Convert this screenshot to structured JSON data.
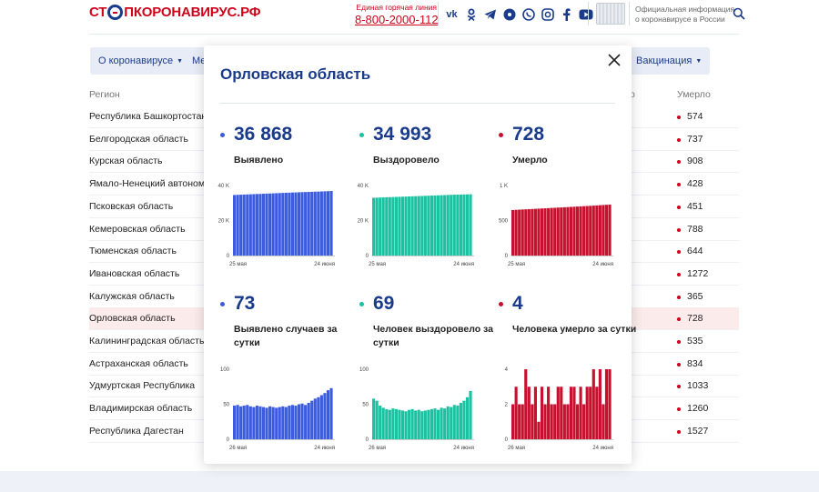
{
  "header": {
    "logo_pre": "СТ",
    "logo_post": "ПКОРОНАВИРУС.РФ",
    "hotline_label": "Единая горячая линия",
    "hotline_phone": "8-800-2000-112",
    "social_icons": [
      "vk-icon",
      "ok-icon",
      "telegram-icon",
      "viber-alt-icon",
      "viber-icon",
      "instagram-icon",
      "facebook-icon",
      "youtube-icon"
    ],
    "official_line1": "Официальная информация",
    "official_line2": "о коронавирусе в России"
  },
  "nav": {
    "pill1": "О коронавирусе",
    "pill2": "Ме",
    "pill3": "Вакцинация"
  },
  "table": {
    "col_region": "Регион",
    "col_partial": "о",
    "col_deaths": "Умерло",
    "rows": [
      {
        "region": "Республика Башкортостан",
        "deaths": "574"
      },
      {
        "region": "Белгородская область",
        "deaths": "737"
      },
      {
        "region": "Курская область",
        "deaths": "908"
      },
      {
        "region": "Ямало-Ненецкий автономн",
        "deaths": "428"
      },
      {
        "region": "Псковская область",
        "deaths": "451"
      },
      {
        "region": "Кемеровская область",
        "deaths": "788"
      },
      {
        "region": "Тюменская область",
        "deaths": "644"
      },
      {
        "region": "Ивановская область",
        "deaths": "1272"
      },
      {
        "region": "Калужская область",
        "deaths": "365"
      },
      {
        "region": "Орловская область",
        "deaths": "728"
      },
      {
        "region": "Калининградская область",
        "deaths": "535"
      },
      {
        "region": "Астраханская область",
        "deaths": "834"
      },
      {
        "region": "Удмуртская Республика",
        "deaths": "1033"
      },
      {
        "region": "Владимирская область",
        "deaths": "1260"
      },
      {
        "region": "Республика Дагестан",
        "deaths": "1527"
      }
    ]
  },
  "modal": {
    "title": "Орловская область",
    "stats": [
      {
        "value": "36 868",
        "label": "Выявлено",
        "color": "#3c5ce0"
      },
      {
        "value": "34 993",
        "label": "Выздоровело",
        "color": "#1bc2a2"
      },
      {
        "value": "728",
        "label": "Умерло",
        "color": "#c8102e"
      },
      {
        "value": "73",
        "label": "Выявлено случаев за сутки",
        "color": "#3c5ce0"
      },
      {
        "value": "69",
        "label": "Человек выздоровело за сутки",
        "color": "#1bc2a2"
      },
      {
        "value": "4",
        "label": "Человека умерло за сутки",
        "color": "#c8102e"
      }
    ]
  },
  "chart_data": [
    {
      "type": "bar",
      "color": "#3c5ce0",
      "yticks": [
        "40 K",
        "20 K",
        "0"
      ],
      "ylim": [
        0,
        40000
      ],
      "xlabels": [
        "25 мая",
        "24 июня"
      ],
      "values": [
        34600,
        34680,
        34760,
        34840,
        34920,
        35000,
        35080,
        35150,
        35220,
        35300,
        35380,
        35460,
        35540,
        35620,
        35700,
        35780,
        35860,
        35930,
        36000,
        36070,
        36140,
        36210,
        36280,
        36350,
        36420,
        36490,
        36560,
        36630,
        36700,
        36770,
        36868
      ]
    },
    {
      "type": "bar",
      "color": "#1bc2a2",
      "yticks": [
        "40 K",
        "20 K",
        "0"
      ],
      "ylim": [
        0,
        40000
      ],
      "xlabels": [
        "25 мая",
        "24 июня"
      ],
      "values": [
        33000,
        33070,
        33140,
        33210,
        33280,
        33350,
        33420,
        33490,
        33560,
        33630,
        33700,
        33770,
        33840,
        33910,
        33980,
        34050,
        34120,
        34190,
        34260,
        34330,
        34400,
        34470,
        34540,
        34610,
        34680,
        34750,
        34800,
        34850,
        34900,
        34950,
        34993
      ]
    },
    {
      "type": "bar",
      "color": "#c8102e",
      "yticks": [
        "1 K",
        "500",
        "0"
      ],
      "ylim": [
        0,
        1000
      ],
      "xlabels": [
        "25 мая",
        "24 июня"
      ],
      "values": [
        650,
        653,
        655,
        658,
        660,
        662,
        665,
        667,
        670,
        672,
        675,
        677,
        680,
        682,
        685,
        687,
        690,
        692,
        695,
        697,
        700,
        702,
        705,
        707,
        710,
        713,
        716,
        719,
        722,
        725,
        728
      ]
    },
    {
      "type": "bar",
      "color": "#3c5ce0",
      "yticks": [
        "100",
        "50",
        "0"
      ],
      "ylim": [
        0,
        100
      ],
      "xlabels": [
        "26 мая",
        "24 июня"
      ],
      "values": [
        48,
        49,
        47,
        48,
        49,
        47,
        46,
        48,
        47,
        46,
        45,
        47,
        46,
        45,
        46,
        47,
        46,
        48,
        49,
        48,
        50,
        51,
        49,
        52,
        55,
        58,
        60,
        63,
        66,
        70,
        73
      ]
    },
    {
      "type": "bar",
      "color": "#1bc2a2",
      "yticks": [
        "100",
        "50",
        "0"
      ],
      "ylim": [
        0,
        100
      ],
      "xlabels": [
        "26 мая",
        "24 июня"
      ],
      "values": [
        58,
        55,
        48,
        45,
        43,
        42,
        44,
        43,
        42,
        41,
        40,
        42,
        43,
        41,
        42,
        40,
        41,
        42,
        43,
        44,
        42,
        45,
        44,
        47,
        46,
        49,
        48,
        52,
        55,
        60,
        69
      ]
    },
    {
      "type": "bar",
      "color": "#c8102e",
      "yticks": [
        "4",
        "2",
        "0"
      ],
      "ylim": [
        0,
        4
      ],
      "xlabels": [
        "26 мая",
        "24 июня"
      ],
      "values": [
        2,
        3,
        2,
        2,
        4,
        3,
        2,
        3,
        1,
        3,
        2,
        3,
        2,
        2,
        3,
        3,
        2,
        2,
        3,
        3,
        2,
        3,
        2,
        3,
        3,
        4,
        3,
        4,
        2,
        4,
        4
      ]
    }
  ]
}
